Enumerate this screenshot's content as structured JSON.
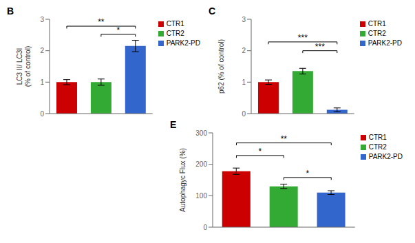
{
  "chart_data": [
    {
      "type": "bar",
      "title": "B",
      "categories": [
        "CTR1",
        "CTR2",
        "PARK2-PD"
      ],
      "values": [
        1.0,
        1.0,
        2.15
      ],
      "errors": [
        0.08,
        0.1,
        0.18
      ],
      "colors": [
        "#cc0000",
        "#33aa33",
        "#3366cc"
      ],
      "ylabel": "LC3 II/ LC3I\n(% of control)",
      "ylim": [
        0,
        3
      ],
      "yticks": [
        0,
        1,
        2,
        3
      ],
      "tick_labels": "y",
      "legend": "right",
      "annotations": [
        {
          "text": "**",
          "x1": "CTR1",
          "x2": "PARK2-PD",
          "y": 2.78
        },
        {
          "text": "*",
          "x1": "CTR2",
          "x2": "PARK2-PD",
          "y": 2.52
        }
      ]
    },
    {
      "type": "bar",
      "title": "C",
      "categories": [
        "CTR1",
        "CTR2",
        "PARK2-PD"
      ],
      "values": [
        1.0,
        1.35,
        0.12
      ],
      "errors": [
        0.07,
        0.09,
        0.06
      ],
      "colors": [
        "#cc0000",
        "#33aa33",
        "#3366cc"
      ],
      "ylabel": "p62 (% of control)",
      "ylim": [
        0,
        3
      ],
      "yticks": [
        0,
        1,
        2,
        3
      ],
      "tick_labels": "y",
      "legend": "right",
      "annotations": [
        {
          "text": "***",
          "x1": "CTR1",
          "x2": "PARK2-PD",
          "y": 2.28
        },
        {
          "text": "***",
          "x1": "CTR2",
          "x2": "PARK2-PD",
          "y": 2.0
        }
      ]
    },
    {
      "type": "bar",
      "title": "E",
      "categories": [
        "CTR1",
        "CTR2",
        "PARK2-PD"
      ],
      "values": [
        178,
        130,
        110
      ],
      "errors": [
        10,
        7,
        6
      ],
      "colors": [
        "#cc0000",
        "#33aa33",
        "#3366cc"
      ],
      "ylabel": "Autophagyc Flux (%)",
      "ylim": [
        0,
        300
      ],
      "yticks": [
        0,
        100,
        200,
        300
      ],
      "tick_labels": "y",
      "legend": "right",
      "annotations": [
        {
          "text": "**",
          "x1": "CTR1",
          "x2": "PARK2-PD",
          "y": 268
        },
        {
          "text": "*",
          "x1": "CTR1",
          "x2": "CTR2",
          "y": 228
        },
        {
          "text": "*",
          "x1": "CTR2",
          "x2": "PARK2-PD",
          "y": 158
        }
      ]
    }
  ]
}
